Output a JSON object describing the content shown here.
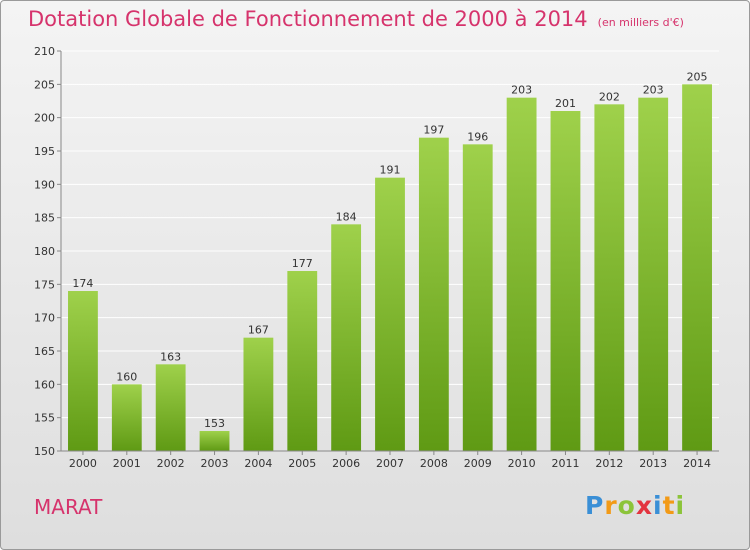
{
  "header": {
    "title": "Dotation Globale de Fonctionnement de 2000 à 2014",
    "unit": "(en milliers d'€)"
  },
  "footer": {
    "place": "MARAT",
    "logo": "Proxiti"
  },
  "colors": {
    "title": "#d6336c",
    "bar_top": "#9fd14b",
    "bar_bottom": "#5f9a14",
    "grid": "#ffffff"
  },
  "chart_data": {
    "type": "bar",
    "title": "Dotation Globale de Fonctionnement de 2000 à 2014",
    "subtitle": "(en milliers d'€)",
    "xlabel": "",
    "ylabel": "",
    "categories": [
      "2000",
      "2001",
      "2002",
      "2003",
      "2004",
      "2005",
      "2006",
      "2007",
      "2008",
      "2009",
      "2010",
      "2011",
      "2012",
      "2013",
      "2014"
    ],
    "values": [
      174,
      160,
      163,
      153,
      167,
      177,
      184,
      191,
      197,
      196,
      203,
      201,
      202,
      203,
      205
    ],
    "ylim": [
      150,
      210
    ],
    "yticks": [
      150,
      155,
      160,
      165,
      170,
      175,
      180,
      185,
      190,
      195,
      200,
      205,
      210
    ],
    "grid": true,
    "data_labels": true
  }
}
